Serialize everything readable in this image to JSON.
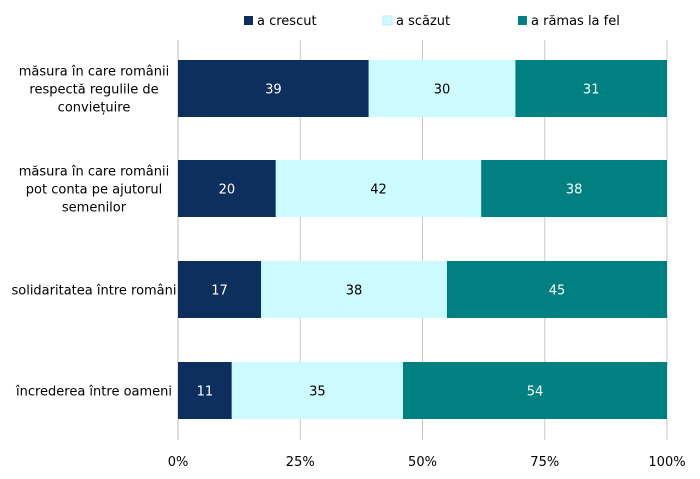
{
  "chart_data": {
    "type": "bar",
    "orientation": "horizontal",
    "stacked": true,
    "categories": [
      [
        "măsura în care românii",
        "respectă regulile de",
        "conviețuire"
      ],
      [
        "măsura în care românii",
        "pot conta pe ajutorul",
        "semenilor"
      ],
      [
        "solidaritatea între români"
      ],
      [
        "încrederea între oameni"
      ]
    ],
    "series": [
      {
        "name": "a crescut",
        "color": "#0d2f5e",
        "label_color": "#ffffff",
        "values": [
          39,
          20,
          17,
          11
        ]
      },
      {
        "name": "a scăzut",
        "color": "#ccfaff",
        "label_color": "#000000",
        "values": [
          30,
          42,
          38,
          35
        ]
      },
      {
        "name": "a rămas la fel",
        "color": "#008080",
        "label_color": "#ffffff",
        "values": [
          31,
          38,
          45,
          54
        ]
      }
    ],
    "xlim": [
      0,
      100
    ],
    "x_ticks": [
      "0%",
      "25%",
      "50%",
      "75%",
      "100%"
    ],
    "grid": true,
    "legend_position": "top"
  }
}
